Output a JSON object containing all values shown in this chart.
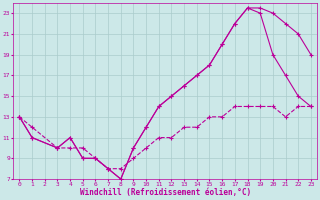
{
  "xlabel": "Windchill (Refroidissement éolien,°C)",
  "ylabel": "",
  "bg_color": "#cce8e8",
  "grid_color": "#aacccc",
  "line_color": "#bb0099",
  "xlim": [
    -0.5,
    23.5
  ],
  "ylim": [
    7,
    24
  ],
  "xticks": [
    0,
    1,
    2,
    3,
    4,
    5,
    6,
    7,
    8,
    9,
    10,
    11,
    12,
    13,
    14,
    15,
    16,
    17,
    18,
    19,
    20,
    21,
    22,
    23
  ],
  "yticks": [
    7,
    9,
    11,
    13,
    15,
    17,
    19,
    21,
    23
  ],
  "line1_x": [
    0,
    1,
    3,
    4,
    5,
    6,
    7,
    8,
    9,
    10,
    11,
    12,
    13,
    14,
    15,
    16,
    17,
    18,
    19,
    20,
    21,
    22,
    23
  ],
  "line1_y": [
    13,
    11,
    10,
    11,
    9,
    9,
    8,
    7,
    10,
    12,
    14,
    15,
    16,
    17,
    18,
    20,
    22,
    23.5,
    23.5,
    23,
    22,
    21,
    19
  ],
  "line2_x": [
    0,
    1,
    3,
    4,
    5,
    6,
    7,
    8,
    9,
    10,
    11,
    12,
    13,
    14,
    15,
    16,
    17,
    18,
    19,
    20,
    21,
    22,
    23
  ],
  "line2_y": [
    13,
    11,
    10,
    11,
    9,
    9,
    8,
    7,
    10,
    12,
    14,
    15,
    16,
    17,
    18,
    20,
    22,
    23.5,
    23,
    19,
    17,
    15,
    14
  ],
  "line3_x": [
    0,
    1,
    3,
    4,
    5,
    6,
    7,
    8,
    9,
    10,
    11,
    12,
    13,
    14,
    15,
    16,
    17,
    18,
    19,
    20,
    21,
    22,
    23
  ],
  "line3_y": [
    13,
    12,
    10,
    10,
    10,
    9,
    8,
    8,
    9,
    10,
    11,
    11,
    12,
    12,
    13,
    13,
    14,
    14,
    14,
    14,
    13,
    14,
    14
  ],
  "marker": "+",
  "markersize": 3.5,
  "linewidth": 0.8,
  "tick_fontsize": 4.5,
  "label_fontsize": 5.5
}
